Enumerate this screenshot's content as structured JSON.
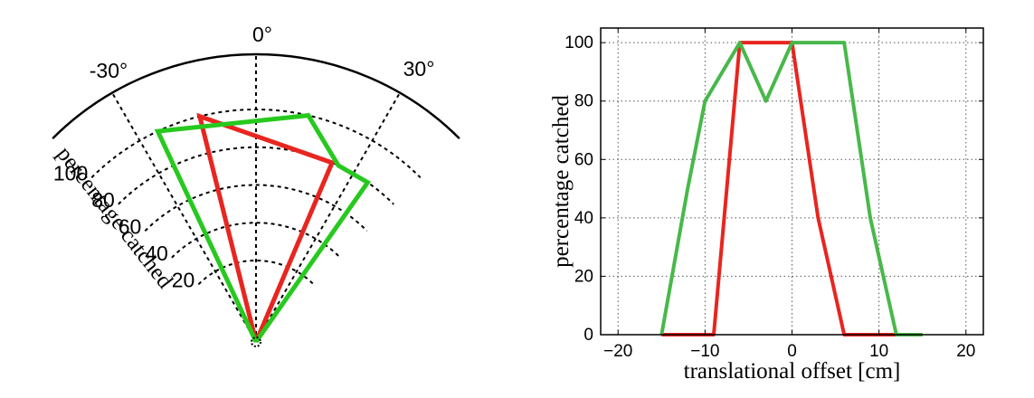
{
  "chart_data": [
    {
      "type": "polar-line",
      "angle_unit": "degrees",
      "angle_labels": [
        "-30°",
        "0°",
        "30°"
      ],
      "radial_labels": [
        "20",
        "40",
        "60",
        "80",
        "100"
      ],
      "rlabel": "percentage catched",
      "rlim": [
        0,
        100
      ],
      "angle_range": [
        -45,
        45
      ],
      "series": [
        {
          "color": "#e8251f",
          "points": [
            [
              0,
              0
            ],
            [
              -14,
              100
            ],
            [
              23,
              80
            ],
            [
              0,
              0
            ]
          ]
        },
        {
          "color": "#27c91e",
          "points": [
            [
              0,
              0
            ],
            [
              -25,
              100
            ],
            [
              13,
              100
            ],
            [
              25,
              80
            ],
            [
              35,
              80
            ],
            [
              0,
              0
            ]
          ]
        }
      ]
    },
    {
      "type": "line",
      "xlabel": "translational offset [cm]",
      "ylabel": "percentage catched",
      "xlim": [
        -22,
        22
      ],
      "ylim": [
        0,
        105
      ],
      "x_ticks": [
        "-20",
        "-10",
        "0",
        "10",
        "20"
      ],
      "y_ticks": [
        "0",
        "20",
        "40",
        "60",
        "80",
        "100"
      ],
      "grid": true,
      "series": [
        {
          "color": "#e8251f",
          "x": [
            -15,
            -9,
            -6,
            0,
            3,
            6,
            12,
            15
          ],
          "y": [
            0,
            0,
            100,
            100,
            40,
            0,
            0,
            0
          ]
        },
        {
          "color": "#48b84a",
          "x": [
            -15,
            -12,
            -10,
            -6,
            -3,
            0,
            6,
            9,
            12,
            15
          ],
          "y": [
            0,
            50,
            80,
            100,
            80,
            100,
            100,
            40,
            0,
            0
          ]
        }
      ]
    }
  ]
}
